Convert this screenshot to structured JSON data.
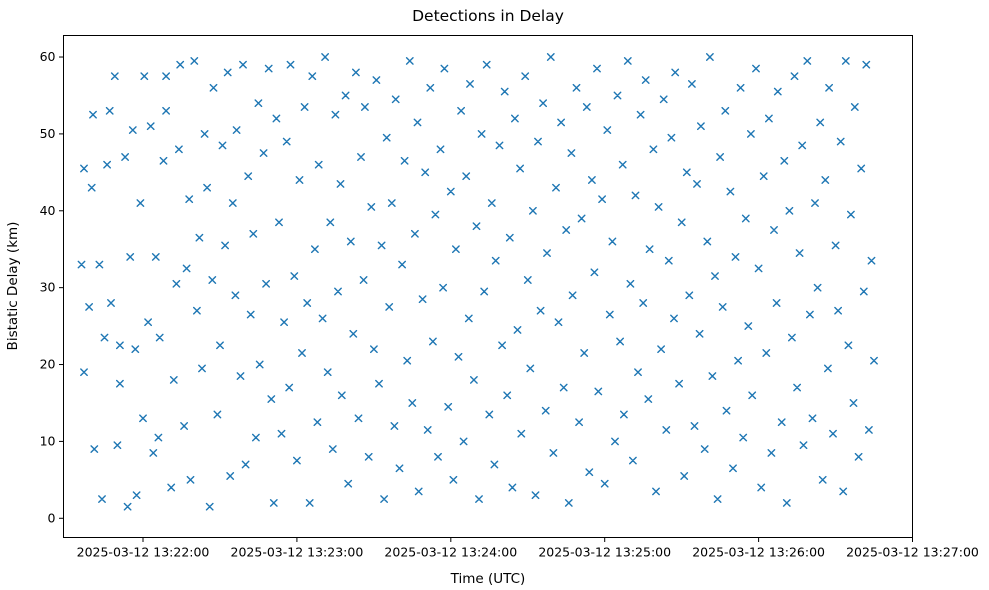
{
  "chart_data": {
    "type": "scatter",
    "title": "Detections in Delay",
    "xlabel": "Time (UTC)",
    "ylabel": "Bistatic Delay (km)",
    "marker": "x",
    "marker_color": "#1f77b4",
    "background_color": "#ffffff",
    "grid": false,
    "x_axis": {
      "tick_labels": [
        "2025-03-12 13:22:00",
        "2025-03-12 13:23:00",
        "2025-03-12 13:24:00",
        "2025-03-12 13:25:00",
        "2025-03-12 13:26:00",
        "2025-03-12 13:27:00"
      ],
      "tick_seconds": [
        0,
        60,
        120,
        180,
        240,
        300
      ],
      "xlim_seconds": [
        -31,
        300
      ]
    },
    "y_axis": {
      "tick_labels": [
        "0",
        "10",
        "20",
        "30",
        "40",
        "50",
        "60"
      ],
      "ticks": [
        0,
        10,
        20,
        30,
        40,
        50,
        60
      ],
      "ylim": [
        -2.5,
        62.8
      ]
    },
    "points_t_seconds_y_km": [
      [
        -24,
        33
      ],
      [
        -23,
        45.5
      ],
      [
        -23,
        19
      ],
      [
        -21,
        27.5
      ],
      [
        -20,
        43
      ],
      [
        -19.5,
        52.5
      ],
      [
        -19,
        9
      ],
      [
        -17,
        33
      ],
      [
        -16,
        2.5
      ],
      [
        -15,
        23.5
      ],
      [
        -14,
        46
      ],
      [
        -13,
        53
      ],
      [
        -12.5,
        28
      ],
      [
        -11,
        57.5
      ],
      [
        -10,
        9.5
      ],
      [
        -9,
        22.5
      ],
      [
        -9,
        17.5
      ],
      [
        -7,
        47
      ],
      [
        -6,
        1.5
      ],
      [
        -5,
        34
      ],
      [
        -4,
        50.5
      ],
      [
        -3,
        22
      ],
      [
        -2.5,
        3
      ],
      [
        -1,
        41
      ],
      [
        0,
        13
      ],
      [
        0.5,
        57.5
      ],
      [
        2,
        25.5
      ],
      [
        3,
        51
      ],
      [
        4,
        8.5
      ],
      [
        5,
        34
      ],
      [
        6,
        10.5
      ],
      [
        6.5,
        23.5
      ],
      [
        8,
        46.5
      ],
      [
        9,
        57.5
      ],
      [
        9,
        53
      ],
      [
        11,
        4
      ],
      [
        12,
        18
      ],
      [
        13,
        30.5
      ],
      [
        14,
        48
      ],
      [
        14.5,
        59
      ],
      [
        16,
        12
      ],
      [
        17,
        32.5
      ],
      [
        18,
        41.5
      ],
      [
        18.5,
        5
      ],
      [
        20,
        59.5
      ],
      [
        21,
        27
      ],
      [
        22,
        36.5
      ],
      [
        23,
        19.5
      ],
      [
        24,
        50
      ],
      [
        25,
        43
      ],
      [
        26,
        1.5
      ],
      [
        27,
        31
      ],
      [
        27.5,
        56
      ],
      [
        29,
        13.5
      ],
      [
        30,
        22.5
      ],
      [
        31,
        48.5
      ],
      [
        32,
        35.5
      ],
      [
        33,
        58
      ],
      [
        34,
        5.5
      ],
      [
        35,
        41
      ],
      [
        36,
        29
      ],
      [
        36.5,
        50.5
      ],
      [
        38,
        18.5
      ],
      [
        39,
        59
      ],
      [
        40,
        7
      ],
      [
        41,
        44.5
      ],
      [
        42,
        26.5
      ],
      [
        43,
        37
      ],
      [
        44,
        10.5
      ],
      [
        45,
        54
      ],
      [
        45.5,
        20
      ],
      [
        47,
        47.5
      ],
      [
        48,
        30.5
      ],
      [
        49,
        58.5
      ],
      [
        50,
        15.5
      ],
      [
        51,
        2
      ],
      [
        52,
        52
      ],
      [
        53,
        38.5
      ],
      [
        54,
        11
      ],
      [
        55,
        25.5
      ],
      [
        56,
        49
      ],
      [
        57,
        17
      ],
      [
        57.5,
        59
      ],
      [
        59,
        31.5
      ],
      [
        60,
        7.5
      ],
      [
        61,
        44
      ],
      [
        62,
        21.5
      ],
      [
        63,
        53.5
      ],
      [
        64,
        28
      ],
      [
        65,
        2
      ],
      [
        66,
        57.5
      ],
      [
        67,
        35
      ],
      [
        68,
        12.5
      ],
      [
        68.5,
        46
      ],
      [
        70,
        26
      ],
      [
        71,
        60
      ],
      [
        72,
        19
      ],
      [
        73,
        38.5
      ],
      [
        74,
        9
      ],
      [
        75,
        52.5
      ],
      [
        76,
        29.5
      ],
      [
        77,
        43.5
      ],
      [
        77.5,
        16
      ],
      [
        79,
        55
      ],
      [
        80,
        4.5
      ],
      [
        81,
        36
      ],
      [
        82,
        24
      ],
      [
        83,
        58
      ],
      [
        84,
        13
      ],
      [
        85,
        47
      ],
      [
        86,
        31
      ],
      [
        86.5,
        53.5
      ],
      [
        88,
        8
      ],
      [
        89,
        40.5
      ],
      [
        90,
        22
      ],
      [
        91,
        57
      ],
      [
        92,
        17.5
      ],
      [
        93,
        35.5
      ],
      [
        94,
        2.5
      ],
      [
        95,
        49.5
      ],
      [
        96,
        27.5
      ],
      [
        97,
        41
      ],
      [
        98,
        12
      ],
      [
        98.5,
        54.5
      ],
      [
        100,
        6.5
      ],
      [
        101,
        33
      ],
      [
        102,
        46.5
      ],
      [
        103,
        20.5
      ],
      [
        104,
        59.5
      ],
      [
        105,
        15
      ],
      [
        106,
        37
      ],
      [
        107,
        51.5
      ],
      [
        107.5,
        3.5
      ],
      [
        109,
        28.5
      ],
      [
        110,
        45
      ],
      [
        111,
        11.5
      ],
      [
        112,
        56
      ],
      [
        113,
        23
      ],
      [
        114,
        39.5
      ],
      [
        115,
        8
      ],
      [
        116,
        48
      ],
      [
        117,
        30
      ],
      [
        117.5,
        58.5
      ],
      [
        119,
        14.5
      ],
      [
        120,
        42.5
      ],
      [
        121,
        5
      ],
      [
        122,
        35
      ],
      [
        123,
        21
      ],
      [
        124,
        53
      ],
      [
        125,
        10
      ],
      [
        126,
        44.5
      ],
      [
        127,
        26
      ],
      [
        127.5,
        56.5
      ],
      [
        129,
        18
      ],
      [
        130,
        38
      ],
      [
        131,
        2.5
      ],
      [
        132,
        50
      ],
      [
        133,
        29.5
      ],
      [
        134,
        59
      ],
      [
        135,
        13.5
      ],
      [
        136,
        41
      ],
      [
        137,
        7
      ],
      [
        137.5,
        33.5
      ],
      [
        139,
        48.5
      ],
      [
        140,
        22.5
      ],
      [
        141,
        55.5
      ],
      [
        142,
        16
      ],
      [
        143,
        36.5
      ],
      [
        144,
        4
      ],
      [
        145,
        52
      ],
      [
        146,
        24.5
      ],
      [
        147,
        45.5
      ],
      [
        147.5,
        11
      ],
      [
        149,
        57.5
      ],
      [
        150,
        31
      ],
      [
        151,
        19.5
      ],
      [
        152,
        40
      ],
      [
        153,
        3
      ],
      [
        154,
        49
      ],
      [
        155,
        27
      ],
      [
        156,
        54
      ],
      [
        157,
        14
      ],
      [
        157.5,
        34.5
      ],
      [
        159,
        60
      ],
      [
        160,
        8.5
      ],
      [
        161,
        43
      ],
      [
        162,
        25.5
      ],
      [
        163,
        51.5
      ],
      [
        164,
        17
      ],
      [
        165,
        37.5
      ],
      [
        166,
        2
      ],
      [
        167,
        47.5
      ],
      [
        167.5,
        29
      ],
      [
        169,
        56
      ],
      [
        170,
        12.5
      ],
      [
        171,
        39
      ],
      [
        172,
        21.5
      ],
      [
        173,
        53.5
      ],
      [
        174,
        6
      ],
      [
        175,
        44
      ],
      [
        176,
        32
      ],
      [
        177,
        58.5
      ],
      [
        177.5,
        16.5
      ],
      [
        179,
        41.5
      ],
      [
        180,
        4.5
      ],
      [
        181,
        50.5
      ],
      [
        182,
        26.5
      ],
      [
        183,
        36
      ],
      [
        184,
        10
      ],
      [
        185,
        55
      ],
      [
        186,
        23
      ],
      [
        187,
        46
      ],
      [
        187.5,
        13.5
      ],
      [
        189,
        59.5
      ],
      [
        190,
        30.5
      ],
      [
        191,
        7.5
      ],
      [
        192,
        42
      ],
      [
        193,
        19
      ],
      [
        194,
        52.5
      ],
      [
        195,
        28
      ],
      [
        196,
        57
      ],
      [
        197,
        15.5
      ],
      [
        197.5,
        35
      ],
      [
        199,
        48
      ],
      [
        200,
        3.5
      ],
      [
        201,
        40.5
      ],
      [
        202,
        22
      ],
      [
        203,
        54.5
      ],
      [
        204,
        11.5
      ],
      [
        205,
        33.5
      ],
      [
        206,
        49.5
      ],
      [
        207,
        26
      ],
      [
        207.5,
        58
      ],
      [
        209,
        17.5
      ],
      [
        210,
        38.5
      ],
      [
        211,
        5.5
      ],
      [
        212,
        45
      ],
      [
        213,
        29
      ],
      [
        214,
        56.5
      ],
      [
        215,
        12
      ],
      [
        216,
        43.5
      ],
      [
        217,
        24
      ],
      [
        217.5,
        51
      ],
      [
        219,
        9
      ],
      [
        220,
        36
      ],
      [
        221,
        60
      ],
      [
        222,
        18.5
      ],
      [
        223,
        31.5
      ],
      [
        224,
        2.5
      ],
      [
        225,
        47
      ],
      [
        226,
        27.5
      ],
      [
        227,
        53
      ],
      [
        227.5,
        14
      ],
      [
        229,
        42.5
      ],
      [
        230,
        6.5
      ],
      [
        231,
        34
      ],
      [
        232,
        20.5
      ],
      [
        233,
        56
      ],
      [
        234,
        10.5
      ],
      [
        235,
        39
      ],
      [
        236,
        25
      ],
      [
        237,
        50
      ],
      [
        237.5,
        16
      ],
      [
        239,
        58.5
      ],
      [
        240,
        32.5
      ],
      [
        241,
        4
      ],
      [
        242,
        44.5
      ],
      [
        243,
        21.5
      ],
      [
        244,
        52
      ],
      [
        245,
        8.5
      ],
      [
        246,
        37.5
      ],
      [
        247,
        28
      ],
      [
        247.5,
        55.5
      ],
      [
        249,
        12.5
      ],
      [
        250,
        46.5
      ],
      [
        251,
        2
      ],
      [
        252,
        40
      ],
      [
        253,
        23.5
      ],
      [
        254,
        57.5
      ],
      [
        255,
        17
      ],
      [
        256,
        34.5
      ],
      [
        257,
        48.5
      ],
      [
        257.5,
        9.5
      ],
      [
        259,
        59.5
      ],
      [
        260,
        26.5
      ],
      [
        261,
        13
      ],
      [
        262,
        41
      ],
      [
        263,
        30
      ],
      [
        264,
        51.5
      ],
      [
        265,
        5
      ],
      [
        266,
        44
      ],
      [
        267,
        19.5
      ],
      [
        267.5,
        56
      ],
      [
        269,
        11
      ],
      [
        270,
        35.5
      ],
      [
        271,
        27
      ],
      [
        272,
        49
      ],
      [
        273,
        3.5
      ],
      [
        274,
        59.5
      ],
      [
        275,
        22.5
      ],
      [
        276,
        39.5
      ],
      [
        277,
        15
      ],
      [
        277.5,
        53.5
      ],
      [
        279,
        8
      ],
      [
        280,
        45.5
      ],
      [
        281,
        29.5
      ],
      [
        282,
        59
      ],
      [
        283,
        11.5
      ],
      [
        284,
        33.5
      ],
      [
        285,
        20.5
      ]
    ]
  }
}
